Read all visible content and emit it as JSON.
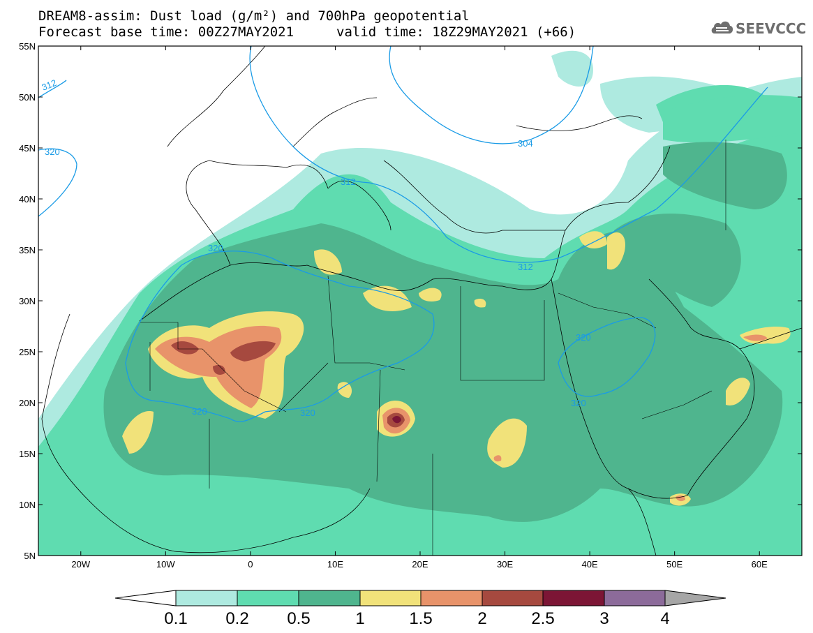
{
  "header": {
    "line1": "DREAM8-assim: Dust load (g/m²) and 700hPa geopotential",
    "line2_left": "Forecast base time: 00Z27MAY2021",
    "line2_right": "valid time: 18Z29MAY2021 (+66)"
  },
  "logo": {
    "text": "SEEVCCC",
    "icon": "cloud-icon"
  },
  "axes": {
    "lat_labels": [
      "55N",
      "50N",
      "45N",
      "40N",
      "35N",
      "30N",
      "25N",
      "20N",
      "15N",
      "10N",
      "5N"
    ],
    "lon_labels": [
      "20W",
      "10W",
      "0",
      "10E",
      "20E",
      "30E",
      "40E",
      "50E",
      "60E"
    ]
  },
  "contour_labels": [
    "312",
    "320",
    "312",
    "304",
    "312",
    "320",
    "320",
    "320",
    "320",
    "320"
  ],
  "colorbar": {
    "labels": [
      "0.1",
      "0.2",
      "0.5",
      "1",
      "1.5",
      "2",
      "2.5",
      "3",
      "4"
    ],
    "colors": [
      "#aeeae0",
      "#5fdcb0",
      "#4fb58e",
      "#f1e27a",
      "#e8936a",
      "#a6493f",
      "#7c1535",
      "#8c6b9a"
    ],
    "under_color": "#ffffff",
    "over_color": "#a6a6a6"
  },
  "colors": {
    "contour": "#1a9be6",
    "coast": "#000000"
  }
}
